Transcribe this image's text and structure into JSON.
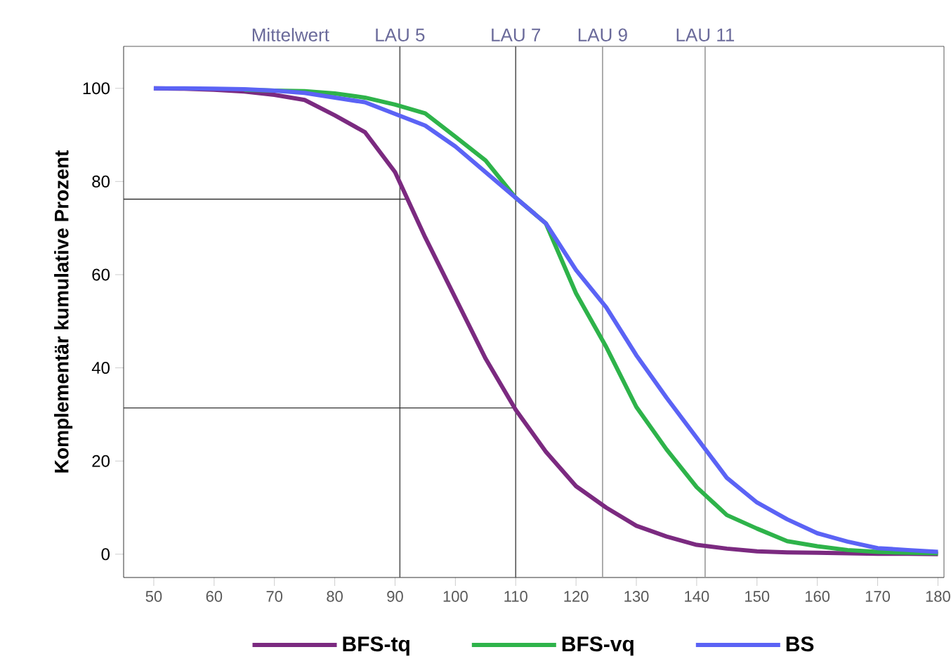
{
  "chart_data": {
    "type": "line",
    "ylabel": "Komplementär kumulative Prozent",
    "x": [
      50,
      55,
      60,
      65,
      70,
      75,
      80,
      85,
      90,
      95,
      100,
      105,
      110,
      115,
      120,
      125,
      130,
      135,
      140,
      145,
      150,
      155,
      160,
      165,
      170,
      175,
      180
    ],
    "series": [
      {
        "name": "BFS-tq",
        "color": "#7b2a80",
        "values": [
          100,
          99.9,
          99.7,
          99.3,
          98.6,
          97.5,
          94.2,
          90.6,
          82,
          68,
          55,
          42,
          31,
          22,
          14.6,
          10,
          6.1,
          3.8,
          2,
          1.2,
          0.6,
          0.4,
          0.3,
          0.2,
          0.1,
          0.1,
          0
        ]
      },
      {
        "name": "BFS-vq",
        "color": "#2eb34a",
        "values": [
          null,
          null,
          null,
          99.7,
          99.5,
          99.4,
          98.9,
          98,
          96.5,
          94.6,
          89.6,
          84.5,
          76.5,
          71,
          56,
          44.5,
          31.6,
          22.5,
          14.4,
          8.4,
          5.5,
          2.8,
          1.7,
          0.9,
          0.5,
          0.3,
          0.2
        ]
      },
      {
        "name": "BS",
        "color": "#5b63f5",
        "values": [
          100,
          100,
          99.9,
          99.8,
          99.5,
          99,
          98,
          97,
          94.5,
          92,
          87.5,
          82,
          76.5,
          71,
          61,
          53,
          42.7,
          33.6,
          25,
          16.4,
          11.1,
          7.5,
          4.5,
          2.7,
          1.3,
          0.9,
          0.5
        ]
      }
    ],
    "xlim": [
      45,
      181
    ],
    "ylim": [
      -5,
      109
    ],
    "xticks": [
      50,
      60,
      70,
      80,
      90,
      100,
      110,
      120,
      130,
      140,
      150,
      160,
      170,
      180
    ],
    "yticks": [
      0,
      20,
      40,
      60,
      80,
      100
    ],
    "ref_lines": [
      {
        "axis": "x",
        "value": 90.8,
        "label": "LAU 5",
        "color": "#555555"
      },
      {
        "axis": "x",
        "value": 110,
        "label": "LAU 7",
        "color": "#555555"
      },
      {
        "axis": "x",
        "value": 124.4,
        "label": "LAU 9",
        "color": "#999999"
      },
      {
        "axis": "x",
        "value": 141.4,
        "label": "LAU 11",
        "color": "#999999"
      },
      {
        "axis": "y",
        "value": 76.2,
        "color": "#333333"
      },
      {
        "axis": "y",
        "value": 31.4,
        "color": "#333333"
      }
    ],
    "annotations": [
      "Mittelwert"
    ],
    "legend": "bottom",
    "grid": false,
    "marker": "none",
    "line_style": "solid"
  }
}
